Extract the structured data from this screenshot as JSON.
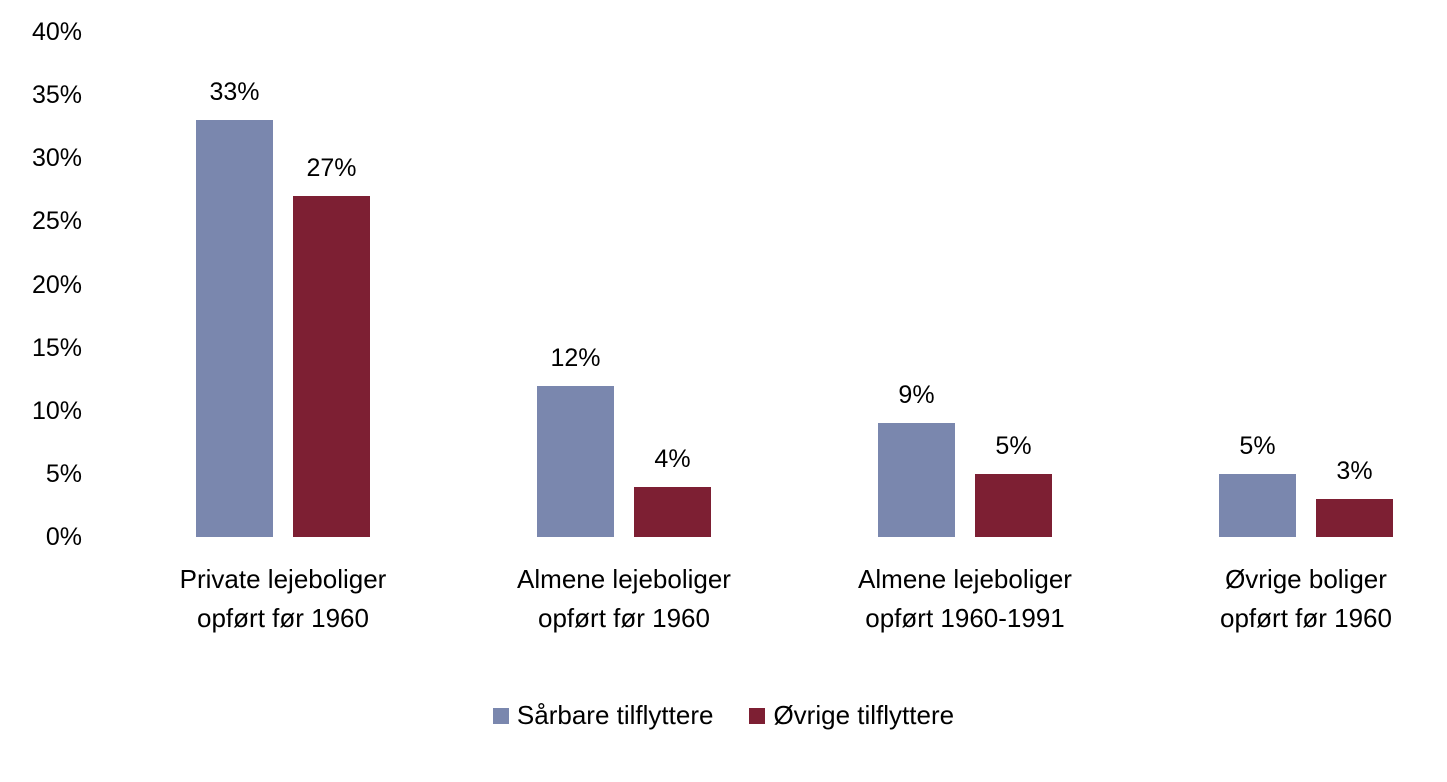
{
  "chart_data": {
    "type": "bar",
    "title": "",
    "xlabel": "",
    "ylabel": "",
    "ylim": [
      0,
      40
    ],
    "yticks": [
      "0%",
      "5%",
      "10%",
      "15%",
      "20%",
      "25%",
      "30%",
      "35%",
      "40%"
    ],
    "grid": false,
    "legend_position": "bottom",
    "categories": [
      [
        "Private lejeboliger",
        "opført før 1960"
      ],
      [
        "Almene lejeboliger",
        "opført før 1960"
      ],
      [
        "Almene lejeboliger",
        "opført 1960-1991"
      ],
      [
        "Øvrige boliger",
        "opført før 1960"
      ]
    ],
    "series": [
      {
        "name": "Sårbare tilflyttere",
        "color": "#7a87ae",
        "values": [
          33,
          12,
          9,
          5
        ],
        "labels": [
          "33%",
          "12%",
          "9%",
          "5%"
        ]
      },
      {
        "name": "Øvrige tilflyttere",
        "color": "#7d1f33",
        "values": [
          27,
          4,
          5,
          3
        ],
        "labels": [
          "27%",
          "4%",
          "5%",
          "3%"
        ]
      }
    ]
  }
}
